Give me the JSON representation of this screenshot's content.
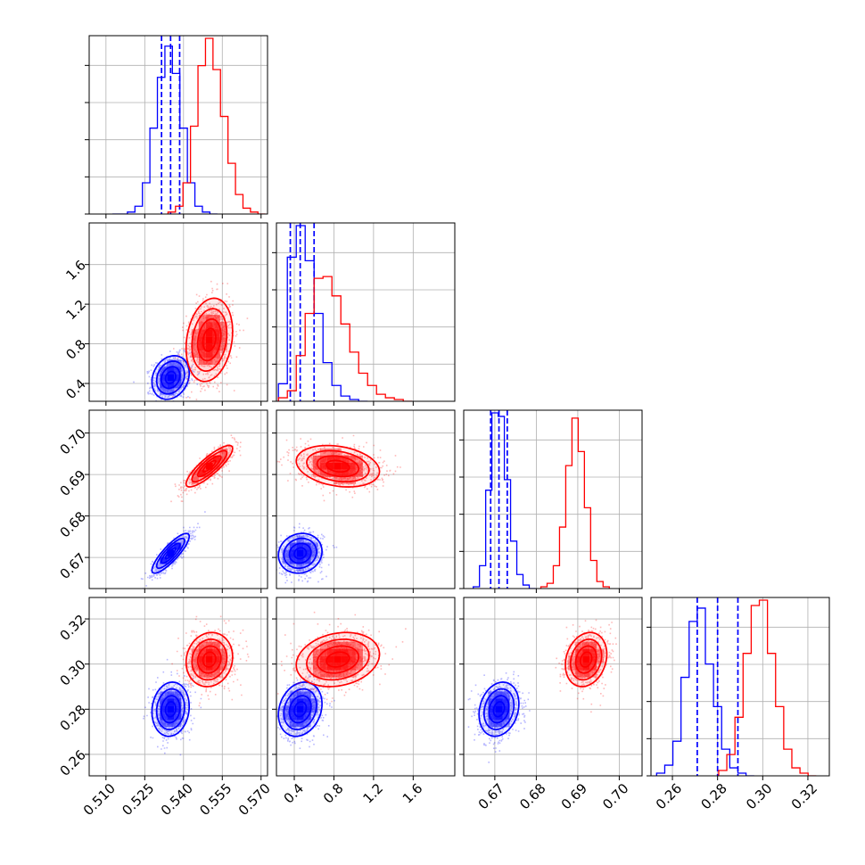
{
  "chart_data": {
    "type": "corner",
    "parameters": [
      {
        "ticks": [
          0.51,
          0.525,
          0.54,
          0.555,
          0.57
        ],
        "tick_labels": [
          "0.510",
          "0.525",
          "0.540",
          "0.555",
          "0.570"
        ],
        "range": [
          0.5035,
          0.5725
        ]
      },
      {
        "ticks": [
          0.4,
          0.8,
          1.2,
          1.6
        ],
        "tick_labels": [
          "0.4",
          "0.8",
          "1.2",
          "1.6"
        ],
        "range": [
          0.22,
          2.02
        ]
      },
      {
        "ticks": [
          0.67,
          0.68,
          0.69,
          0.7
        ],
        "tick_labels": [
          "0.67",
          "0.68",
          "0.69",
          "0.70"
        ],
        "range": [
          0.6625,
          0.7055
        ]
      },
      {
        "ticks": [
          0.26,
          0.28,
          0.3,
          0.32
        ],
        "tick_labels": [
          "0.26",
          "0.28",
          "0.30",
          "0.32"
        ],
        "range": [
          0.2505,
          0.3295
        ]
      }
    ],
    "series": [
      {
        "color": "#0000ff",
        "marginals": [
          {
            "edges_start": 0.5125,
            "bin": 0.0029,
            "counts": [
              0,
              0,
              1,
              4,
              16,
              44,
              70,
              86,
              72,
              44,
              16,
              4,
              1,
              0
            ],
            "quantiles": [
              0.5315,
              0.535,
              0.5385
            ]
          },
          {
            "edges_start": 0.24,
            "bin": 0.09,
            "counts": [
              10,
              82,
              100,
              80,
              50,
              22,
              9,
              3,
              1,
              0
            ],
            "quantiles": [
              0.36,
              0.46,
              0.6
            ]
          },
          {
            "edges_start": 0.6648,
            "bin": 0.0015,
            "counts": [
              1,
              13,
              56,
              100,
              98,
              62,
              27,
              8,
              2,
              0
            ],
            "quantiles": [
              0.669,
              0.671,
              0.673
            ]
          },
          {
            "edges_start": 0.253,
            "bin": 0.0036,
            "counts": [
              1,
              4,
              13,
              37,
              58,
              63,
              42,
              26,
              10,
              3,
              1,
              0
            ],
            "quantiles": [
              0.271,
              0.28,
              0.289
            ]
          }
        ],
        "means": [
          0.535,
          0.46,
          0.671,
          0.28
        ],
        "sigmas": [
          0.0036,
          0.11,
          0.0024,
          0.006
        ],
        "correlations": [
          [
            1,
            0.2,
            0.85,
            0.1
          ],
          [
            0.2,
            1,
            0.1,
            0.2
          ],
          [
            0.85,
            0.1,
            1,
            0.2
          ],
          [
            0.1,
            0.2,
            0.2,
            1
          ]
        ]
      },
      {
        "color": "#ff0000",
        "marginals": [
          {
            "edges_start": 0.534,
            "bin": 0.0029,
            "counts": [
              1,
              4,
              16,
              45,
              76,
              90,
              74,
              50,
              26,
              10,
              3,
              1,
              0
            ],
            "quantiles": []
          },
          {
            "edges_start": 0.24,
            "bin": 0.09,
            "counts": [
              2,
              6,
              26,
              50,
              70,
              71,
              60,
              44,
              28,
              16,
              9,
              4,
              2,
              1,
              0
            ],
            "quantiles": []
          },
          {
            "edges_start": 0.6811,
            "bin": 0.0015,
            "counts": [
              1,
              3,
              13,
              35,
              70,
              97,
              78,
              46,
              16,
              4,
              1
            ],
            "quantiles": []
          },
          {
            "edges_start": 0.2805,
            "bin": 0.0036,
            "counts": [
              2,
              8,
              22,
              46,
              64,
              66,
              46,
              26,
              10,
              3,
              1,
              0
            ],
            "quantiles": []
          }
        ],
        "means": [
          0.55,
          0.84,
          0.692,
          0.302
        ],
        "sigmas": [
          0.0045,
          0.21,
          0.0025,
          0.006
        ],
        "correlations": [
          [
            1,
            0.2,
            0.85,
            0.1
          ],
          [
            0.2,
            1,
            -0.25,
            0.2
          ],
          [
            0.85,
            -0.25,
            1,
            0.2
          ],
          [
            0.1,
            0.2,
            0.2,
            1
          ]
        ]
      }
    ]
  }
}
